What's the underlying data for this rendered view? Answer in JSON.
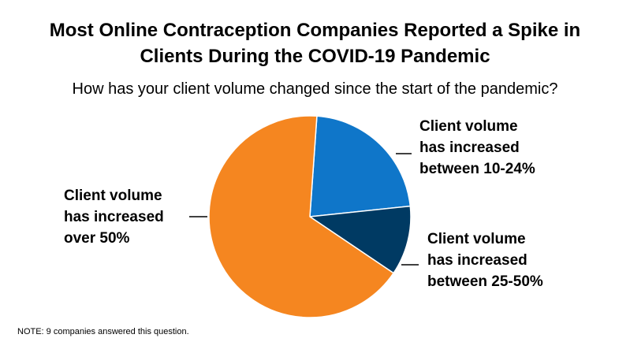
{
  "title": {
    "line1": "Most Online Contraception Companies Reported a Spike in",
    "line2": "Clients During the COVID-19 Pandemic"
  },
  "subtitle": "How has your client volume changed since the start of the pandemic?",
  "note": "NOTE: 9 companies answered this question.",
  "chart_data": {
    "type": "pie",
    "categories": [
      "Client volume has increased between 10-24%",
      "Client volume has increased between 25-50%",
      "Client volume has increased over 50%"
    ],
    "values": [
      2,
      1,
      6
    ],
    "label_lines": [
      [
        "Client volume",
        "has increased",
        "between 10-24%"
      ],
      [
        "Client volume",
        "has increased",
        "between 25-50%"
      ],
      [
        "Client volume",
        "has increased",
        "over 50%"
      ]
    ],
    "colors": [
      "#0f76c9",
      "#003a63",
      "#f58620"
    ],
    "start_angle_deg": 4,
    "direction": "clockwise",
    "legend": "none"
  }
}
